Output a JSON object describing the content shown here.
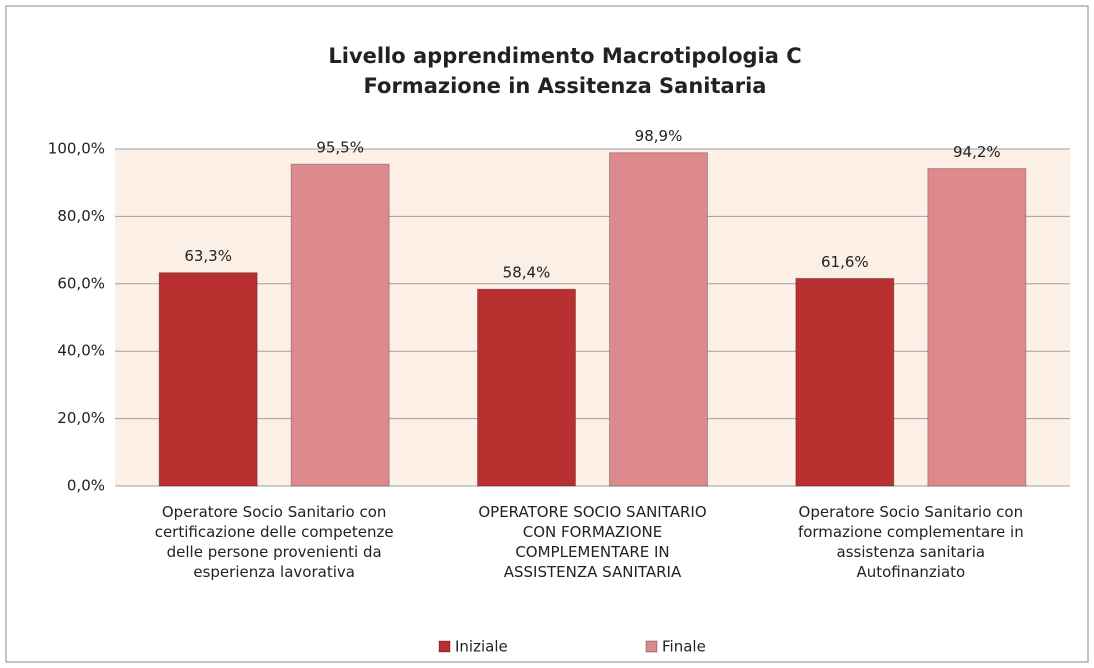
{
  "chart_data": {
    "type": "bar",
    "title": [
      "Livello apprendimento  Macrotipologia C",
      "Formazione in Assitenza Sanitaria"
    ],
    "categories": [
      "Operatore Socio Sanitario con certificazione delle competenze delle persone provenienti da esperienza lavorativa",
      "OPERATORE SOCIO SANITARIO CON FORMAZIONE COMPLEMENTARE IN ASSISTENZA SANITARIA",
      "Operatore Socio Sanitario con formazione complementare in assistenza sanitaria Autofinanziato"
    ],
    "series": [
      {
        "name": "Iniziale",
        "color": "#b8302f",
        "values": [
          63.3,
          58.4,
          61.6
        ],
        "value_labels": [
          "63,3%",
          "58,4%",
          "61,6%"
        ]
      },
      {
        "name": "Finale",
        "color": "#dc8a8e",
        "values": [
          95.5,
          98.9,
          94.2
        ],
        "value_labels": [
          "95,5%",
          "98,9%",
          "94,2%"
        ]
      }
    ],
    "ylim": [
      0,
      100
    ],
    "yticks": [
      {
        "value": 0,
        "label": "0,0%"
      },
      {
        "value": 20,
        "label": "20,0%"
      },
      {
        "value": 40,
        "label": "40,0%"
      },
      {
        "value": 60,
        "label": "60,0%"
      },
      {
        "value": 80,
        "label": "80,0%"
      },
      {
        "value": 100,
        "label": "100,0%"
      }
    ],
    "grid": true,
    "legend": "bottom"
  }
}
